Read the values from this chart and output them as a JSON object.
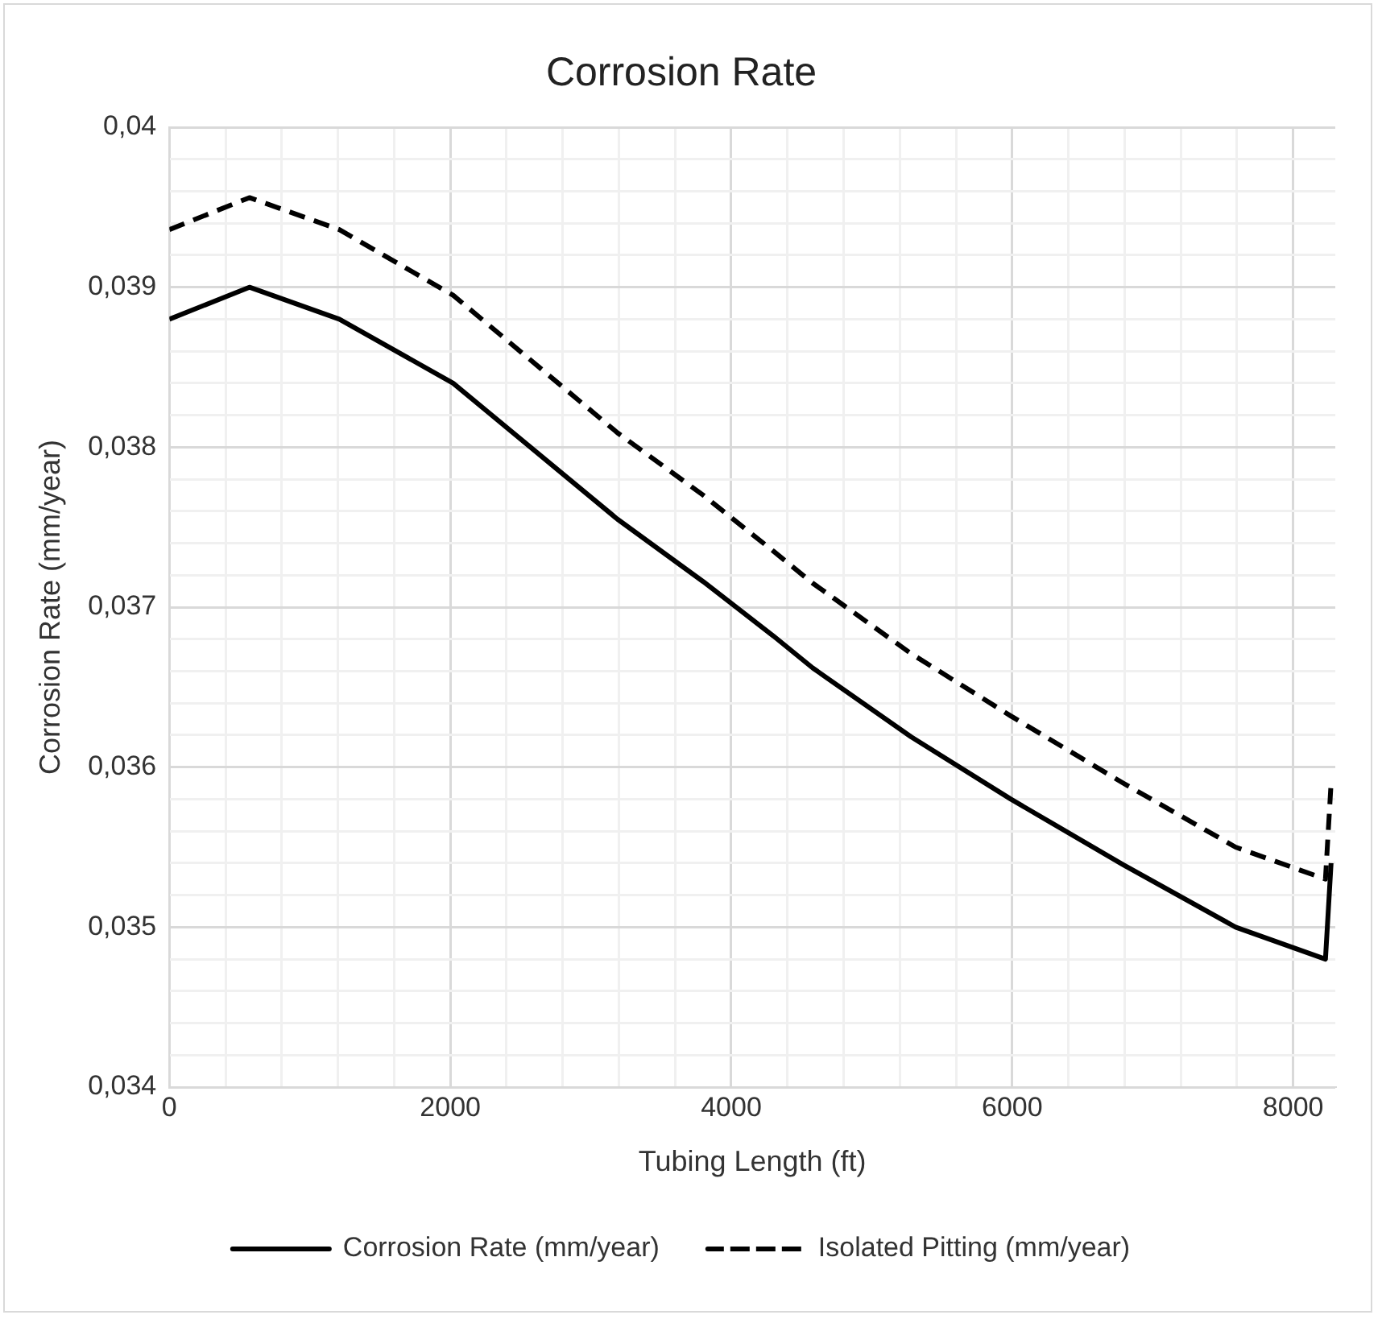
{
  "chart_data": {
    "type": "line",
    "title": "Corrosion Rate",
    "xlabel": "Tubing Length (ft)",
    "ylabel": "Corrosion Rate (mm/year)",
    "x": [
      0,
      570,
      1210,
      2020,
      3190,
      3800,
      4300,
      4580,
      5280,
      5990,
      6790,
      7590,
      8230,
      8270
    ],
    "series": [
      {
        "name": "Corrosion Rate (mm/year)",
        "color": "#000000",
        "line_style": "solid",
        "values": [
          0.0388,
          0.039,
          0.0388,
          0.0384,
          0.03755,
          0.03716,
          0.03682,
          0.03662,
          0.03619,
          0.0358,
          0.03539,
          0.035,
          0.0348,
          0.0354
        ]
      },
      {
        "name": "Isolated Pitting (mm/year)",
        "color": "#000000",
        "line_style": "dashed",
        "values": [
          0.03936,
          0.03956,
          0.03936,
          0.03895,
          0.03809,
          0.0377,
          0.03735,
          0.03715,
          0.03671,
          0.03632,
          0.0359,
          0.0355,
          0.0353,
          0.0359
        ]
      }
    ],
    "xlim": [
      0,
      8300
    ],
    "xticks": [
      0,
      {
        "value": 400,
        "label": null
      },
      {
        "value": 800,
        "label": null
      },
      {
        "value": 1200,
        "label": null
      },
      {
        "value": 1600,
        "label": null
      },
      2000,
      {
        "value": 2400,
        "label": null
      },
      {
        "value": 2800,
        "label": null
      },
      {
        "value": 3200,
        "label": null
      },
      {
        "value": 3600,
        "label": null
      },
      4000,
      {
        "value": 4400,
        "label": null
      },
      {
        "value": 4800,
        "label": null
      },
      {
        "value": 5200,
        "label": null
      },
      {
        "value": 5600,
        "label": null
      },
      6000,
      {
        "value": 6400,
        "label": null
      },
      {
        "value": 6800,
        "label": null
      },
      {
        "value": 7200,
        "label": null
      },
      {
        "value": 7600,
        "label": null
      },
      8000
    ],
    "ylim": [
      0.034,
      0.04
    ],
    "yticks": [
      {
        "value": 0.034,
        "label": "0,034"
      },
      {
        "value": 0.0342,
        "label": null
      },
      {
        "value": 0.0344,
        "label": null
      },
      {
        "value": 0.0346,
        "label": null
      },
      {
        "value": 0.0348,
        "label": null
      },
      {
        "value": 0.035,
        "label": "0,035"
      },
      {
        "value": 0.0352,
        "label": null
      },
      {
        "value": 0.0354,
        "label": null
      },
      {
        "value": 0.0356,
        "label": null
      },
      {
        "value": 0.0358,
        "label": null
      },
      {
        "value": 0.036,
        "label": "0,036"
      },
      {
        "value": 0.0362,
        "label": null
      },
      {
        "value": 0.0364,
        "label": null
      },
      {
        "value": 0.0366,
        "label": null
      },
      {
        "value": 0.0368,
        "label": null
      },
      {
        "value": 0.037,
        "label": "0,037"
      },
      {
        "value": 0.0372,
        "label": null
      },
      {
        "value": 0.0374,
        "label": null
      },
      {
        "value": 0.0376,
        "label": null
      },
      {
        "value": 0.0378,
        "label": null
      },
      {
        "value": 0.038,
        "label": "0,038"
      },
      {
        "value": 0.0382,
        "label": null
      },
      {
        "value": 0.0384,
        "label": null
      },
      {
        "value": 0.0386,
        "label": null
      },
      {
        "value": 0.0388,
        "label": null
      },
      {
        "value": 0.039,
        "label": "0,039"
      },
      {
        "value": 0.0392,
        "label": null
      },
      {
        "value": 0.0394,
        "label": null
      },
      {
        "value": 0.0396,
        "label": null
      },
      {
        "value": 0.0398,
        "label": null
      },
      {
        "value": 0.04,
        "label": "0,04"
      }
    ],
    "grid": true,
    "legend": "bottom",
    "marker": "none"
  }
}
